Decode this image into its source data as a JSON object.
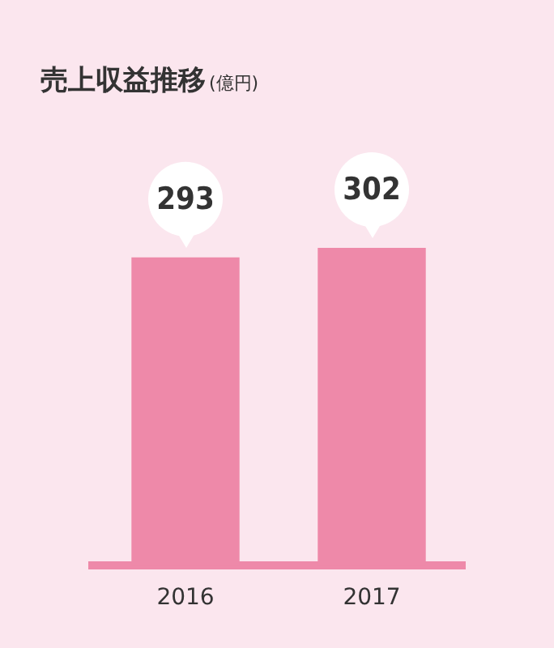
{
  "chart_data": {
    "type": "bar",
    "title": "売上収益推移",
    "subtitle": "(億円)",
    "categories": [
      "2016",
      "2017"
    ],
    "values": [
      293,
      302
    ],
    "color": "#ee89a9",
    "data_labels": true,
    "grid": false,
    "legend": false
  }
}
